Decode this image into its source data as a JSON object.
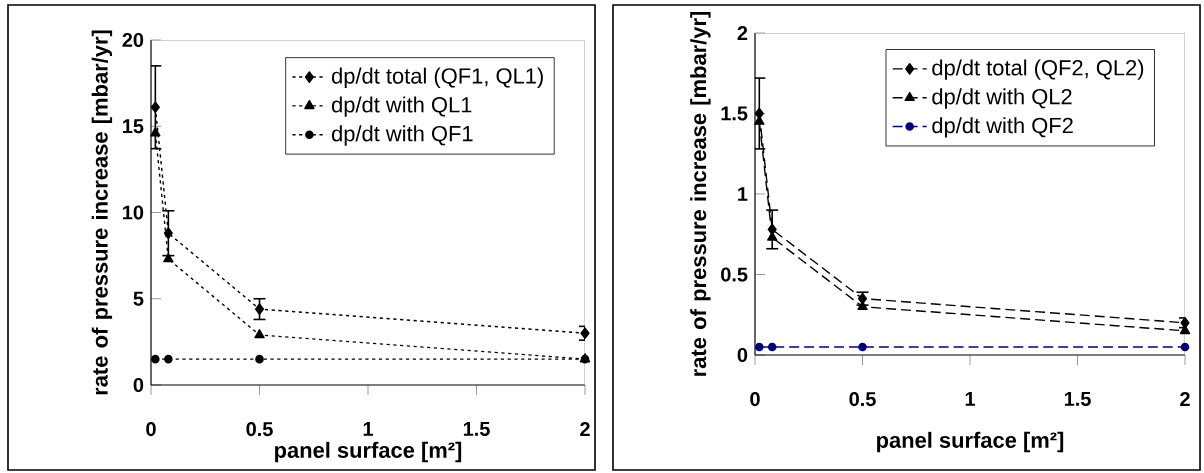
{
  "chart_data": [
    {
      "type": "line",
      "xlabel": "panel surface [m²]",
      "ylabel": "rate of pressure increase [mbar/yr]",
      "xlim": [
        0,
        2
      ],
      "ylim": [
        0,
        20
      ],
      "xticks": [
        0,
        0.5,
        1,
        1.5,
        2
      ],
      "yticks": [
        0,
        5,
        10,
        15,
        20
      ],
      "grid": false,
      "legend": "top right",
      "line_style": "dotted",
      "x": [
        0.02,
        0.08,
        0.5,
        2
      ],
      "series": [
        {
          "name": "dp/dt total (QF1, QL1)",
          "color": "#000000",
          "marker": "diamond",
          "values": [
            16.1,
            8.8,
            4.4,
            3.0
          ],
          "errors": [
            2.4,
            1.3,
            0.6,
            0.4
          ]
        },
        {
          "name": "dp/dt with QL1",
          "color": "#000000",
          "marker": "triangle",
          "values": [
            14.6,
            7.3,
            2.9,
            1.5
          ]
        },
        {
          "name": "dp/dt with QF1",
          "color": "#000000",
          "marker": "circle",
          "values": [
            1.5,
            1.5,
            1.5,
            1.5
          ]
        }
      ]
    },
    {
      "type": "line",
      "xlabel": "panel surface [m²]",
      "ylabel": "rate of pressure increase [mbar/yr]",
      "xlim": [
        0,
        2
      ],
      "ylim": [
        0,
        2
      ],
      "xticks": [
        0,
        0.5,
        1,
        1.5,
        2
      ],
      "yticks": [
        0,
        0.5,
        1,
        1.5,
        2
      ],
      "grid": false,
      "legend": "top right",
      "line_style": "dashed",
      "x": [
        0.02,
        0.08,
        0.5,
        2
      ],
      "series": [
        {
          "name": "dp/dt total  (QF2, QL2)",
          "color": "#000000",
          "marker": "diamond",
          "values": [
            1.5,
            0.78,
            0.35,
            0.2
          ],
          "errors": [
            0.22,
            0.12,
            0.04,
            0.03
          ]
        },
        {
          "name": "dp/dt with QL2",
          "color": "#000000",
          "marker": "triangle",
          "values": [
            1.45,
            0.73,
            0.3,
            0.15
          ]
        },
        {
          "name": "dp/dt with QF2",
          "color": "#000080",
          "marker": "circle",
          "values": [
            0.05,
            0.05,
            0.05,
            0.05
          ]
        }
      ]
    }
  ]
}
